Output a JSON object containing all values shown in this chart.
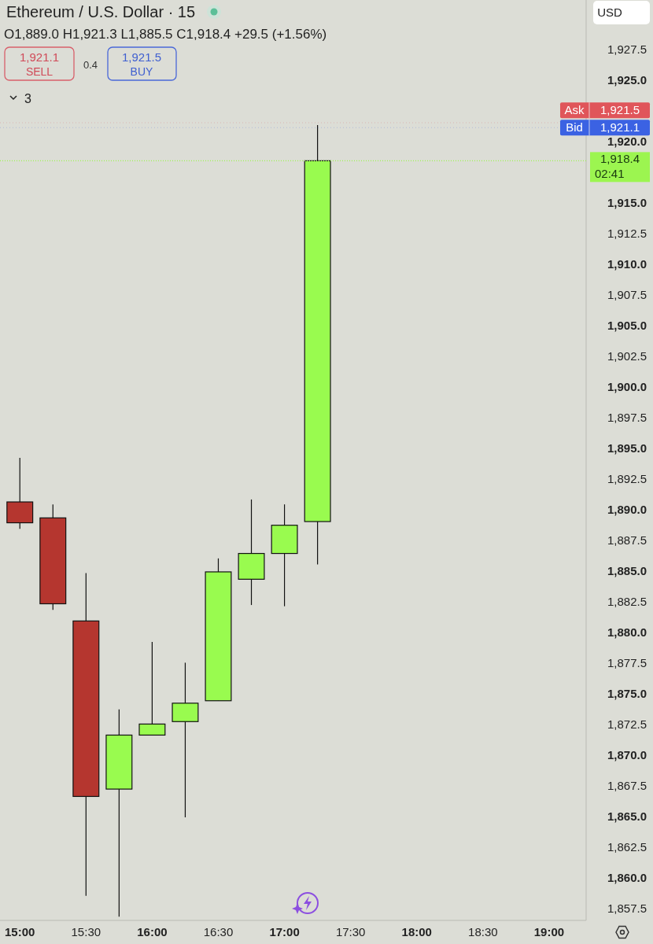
{
  "chart_data": {
    "type": "candlestick",
    "title": "Ethereum / U.S. Dollar · 15",
    "subtitle": "O1,889.0 H1,921.3 L1,885.5 C1,918.4 +29.5 (+1.56%)",
    "x": [
      15,
      15.25,
      15.5,
      15.75,
      16,
      16.25,
      16.5,
      16.75,
      17,
      17.25
    ],
    "ohlc": [
      [
        1890.6,
        1894.2,
        1888.4,
        1888.9
      ],
      [
        1889.3,
        1890.4,
        1881.8,
        1882.3
      ],
      [
        1880.9,
        1884.8,
        1858.5,
        1866.6
      ],
      [
        1867.2,
        1873.7,
        1856.8,
        1871.6
      ],
      [
        1871.6,
        1879.2,
        1871.6,
        1872.5
      ],
      [
        1872.7,
        1877.5,
        1864.9,
        1874.2
      ],
      [
        1874.4,
        1886.0,
        1874.4,
        1884.9
      ],
      [
        1884.3,
        1890.8,
        1882.2,
        1886.4
      ],
      [
        1886.4,
        1890.4,
        1882.1,
        1888.7
      ],
      [
        1889.0,
        1921.3,
        1885.5,
        1918.4
      ]
    ],
    "colors": [
      "#b5362f",
      "#b5362f",
      "#b5362f",
      "#99fb4f",
      "#99fb4f",
      "#99fb4f",
      "#99fb4f",
      "#99fb4f",
      "#99fb4f",
      "#99fb4f"
    ],
    "xlim": [
      14.85,
      19.28
    ],
    "xticks": [
      {
        "value": 15,
        "label": "15:00"
      },
      {
        "value": 15.5,
        "label": "15:30"
      },
      {
        "value": 16,
        "label": "16:00"
      },
      {
        "value": 16.5,
        "label": "16:30"
      },
      {
        "value": 17,
        "label": "17:00"
      },
      {
        "value": 17.5,
        "label": "17:30"
      },
      {
        "value": 18,
        "label": "18:00"
      },
      {
        "value": 18.5,
        "label": "18:30"
      },
      {
        "value": 19,
        "label": "19:00"
      }
    ],
    "ylim": [
      1856.5,
      1931.5
    ],
    "yticks": [
      {
        "value": 1857.5,
        "label": "1,857.5"
      },
      {
        "value": 1860,
        "label": "1,860.0"
      },
      {
        "value": 1862.5,
        "label": "1,862.5"
      },
      {
        "value": 1865,
        "label": "1,865.0"
      },
      {
        "value": 1867.5,
        "label": "1,867.5"
      },
      {
        "value": 1870,
        "label": "1,870.0"
      },
      {
        "value": 1872.5,
        "label": "1,872.5"
      },
      {
        "value": 1875,
        "label": "1,875.0"
      },
      {
        "value": 1877.5,
        "label": "1,877.5"
      },
      {
        "value": 1880,
        "label": "1,880.0"
      },
      {
        "value": 1882.5,
        "label": "1,882.5"
      },
      {
        "value": 1885,
        "label": "1,885.0"
      },
      {
        "value": 1887.5,
        "label": "1,887.5"
      },
      {
        "value": 1890,
        "label": "1,890.0"
      },
      {
        "value": 1892.5,
        "label": "1,892.5"
      },
      {
        "value": 1895,
        "label": "1,895.0"
      },
      {
        "value": 1897.5,
        "label": "1,897.5"
      },
      {
        "value": 1900,
        "label": "1,900.0"
      },
      {
        "value": 1902.5,
        "label": "1,902.5"
      },
      {
        "value": 1905,
        "label": "1,905.0"
      },
      {
        "value": 1907.5,
        "label": "1,907.5"
      },
      {
        "value": 1910,
        "label": "1,910.0"
      },
      {
        "value": 1912.5,
        "label": "1,912.5"
      },
      {
        "value": 1915,
        "label": "1,915.0"
      },
      {
        "value": 1920,
        "label": "1,920.0"
      },
      {
        "value": 1925,
        "label": "1,925.0"
      },
      {
        "value": 1927.5,
        "label": "1,927.5"
      }
    ],
    "ref_lines": [
      {
        "axis": "y",
        "value": 1921.5,
        "label": "Ask",
        "color": "#e0555a"
      },
      {
        "axis": "y",
        "value": 1921.1,
        "label": "Bid",
        "color": "#3b62e3"
      },
      {
        "axis": "y",
        "value": 1918.4,
        "label": "1,918.4",
        "color": "#9cf550",
        "line_style": "dotted"
      }
    ],
    "annotations": [
      "1,921.1",
      "SELL",
      "0.4",
      "1,921.5",
      "BUY",
      "3",
      "USD",
      "02:41"
    ],
    "grid": false
  }
}
